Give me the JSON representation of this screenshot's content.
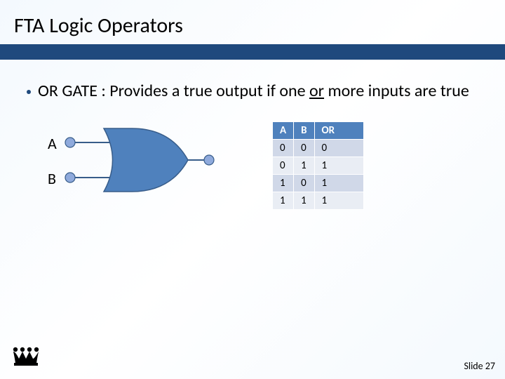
{
  "slide": {
    "title": "FTA Logic Operators",
    "bullet_prefix": "OR GATE : Provides a true output if one ",
    "bullet_underlined": "or",
    "bullet_suffix": " more inputs are true",
    "slide_number": "Slide 27"
  },
  "colors": {
    "bar": "#1f497d",
    "bullet": "#1f497d",
    "header_bg": "#4f81bd",
    "header_fg": "#ffffff",
    "row_odd": "#d0d8e8",
    "row_even": "#e9edf4",
    "gate_fill": "#4f81bd",
    "gate_stroke": "#385d8a",
    "node_fill": "#8faadc",
    "logo": "#000000"
  },
  "gate": {
    "input_labels": [
      "A",
      "B"
    ],
    "type": "or"
  },
  "truth_table": {
    "columns": [
      "A",
      "B",
      "OR"
    ],
    "rows": [
      [
        "0",
        "0",
        "0"
      ],
      [
        "0",
        "1",
        "1"
      ],
      [
        "1",
        "0",
        "1"
      ],
      [
        "1",
        "1",
        "1"
      ]
    ]
  }
}
